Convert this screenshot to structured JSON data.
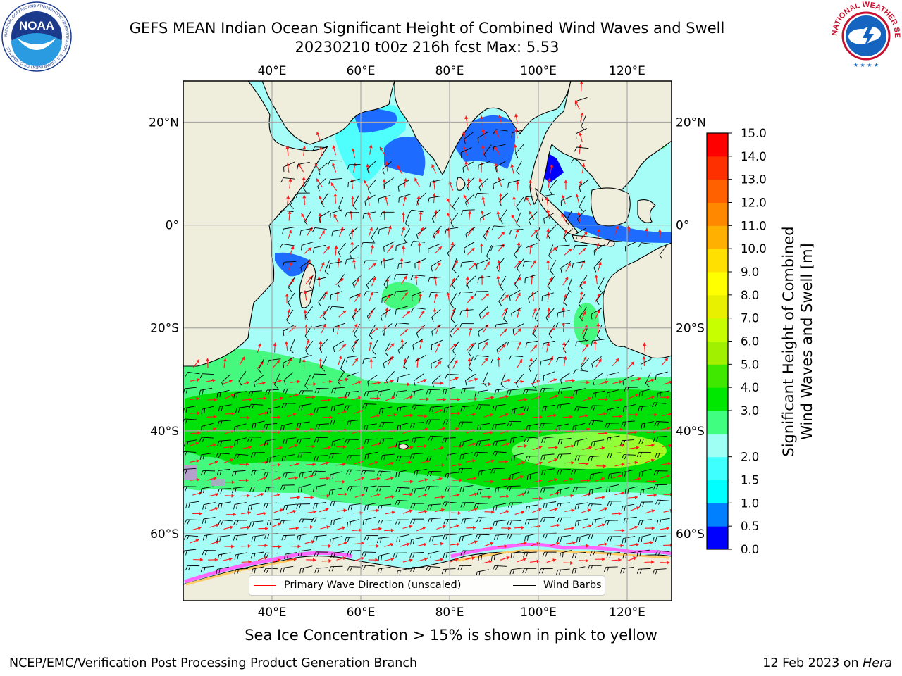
{
  "title": {
    "line1": "GEFS MEAN Indian Ocean Significant Height of Combined Wind Waves and Swell",
    "line2": "20230210 t00z 216h fcst   Max: 5.53"
  },
  "map": {
    "lon_range": [
      20,
      130
    ],
    "lat_range": [
      -73,
      28
    ],
    "lon_ticks": [
      40,
      60,
      80,
      100,
      120
    ],
    "lat_ticks": [
      20,
      0,
      -20,
      -40,
      -60
    ],
    "lon_tick_labels": [
      "40°E",
      "60°E",
      "80°E",
      "100°E",
      "120°E"
    ],
    "lat_tick_labels": [
      "20°N",
      "0°",
      "20°S",
      "40°S",
      "60°S"
    ],
    "land_color": "#efeddc",
    "ice_colors": [
      "#ff66ff",
      "#ff99cc",
      "#ffcc66",
      "#ffff99"
    ]
  },
  "colorbar": {
    "levels": [
      "0.0",
      "0.5",
      "1.0",
      "1.5",
      "2.0",
      "2.5",
      "3.0",
      "4.0",
      "5.0",
      "6.0",
      "7.0",
      "8.0",
      "9.0",
      "10.0",
      "11.0",
      "12.0",
      "13.0",
      "14.0",
      "15.0"
    ],
    "tick_labels": [
      "0.0",
      "0.5",
      "1.0",
      "1.5",
      "2.0",
      "3.0",
      "4.0",
      "5.0",
      "6.0",
      "7.0",
      "8.0",
      "9.0",
      "10.0",
      "11.0",
      "12.0",
      "13.0",
      "14.0",
      "15.0"
    ],
    "colors": [
      "#0000ff",
      "#0080ff",
      "#00ffff",
      "#40ffff",
      "#9ffff5",
      "#40ff80",
      "#00e800",
      "#40e800",
      "#a0f000",
      "#c8ff00",
      "#e8f000",
      "#ffff00",
      "#ffe000",
      "#ffb000",
      "#ff8800",
      "#ff6000",
      "#ff3000",
      "#ff0000"
    ],
    "label_line1": "Significant Height of Combined",
    "label_line2": "Wind Waves and Swell [m]"
  },
  "legend": {
    "wave_label": "Primary Wave Direction (unscaled)",
    "barb_label": "Wind Barbs"
  },
  "footer": {
    "note": "Sea Ice Concentration > 15% is shown in pink to yellow",
    "credit_left": "NCEP/EMC/Verification Post Processing Product Generation Branch",
    "date_text": "12 Feb 2023 on ",
    "machine": "Hera"
  },
  "logos": {
    "noaa_text": "NOAA",
    "noaa_ring": "NATIONAL OCEANIC AND ATMOSPHERIC ADMINISTRATION · U.S. DEPARTMENT OF COMMERCE",
    "nws_ring": "NATIONAL WEATHER SERVICE"
  }
}
